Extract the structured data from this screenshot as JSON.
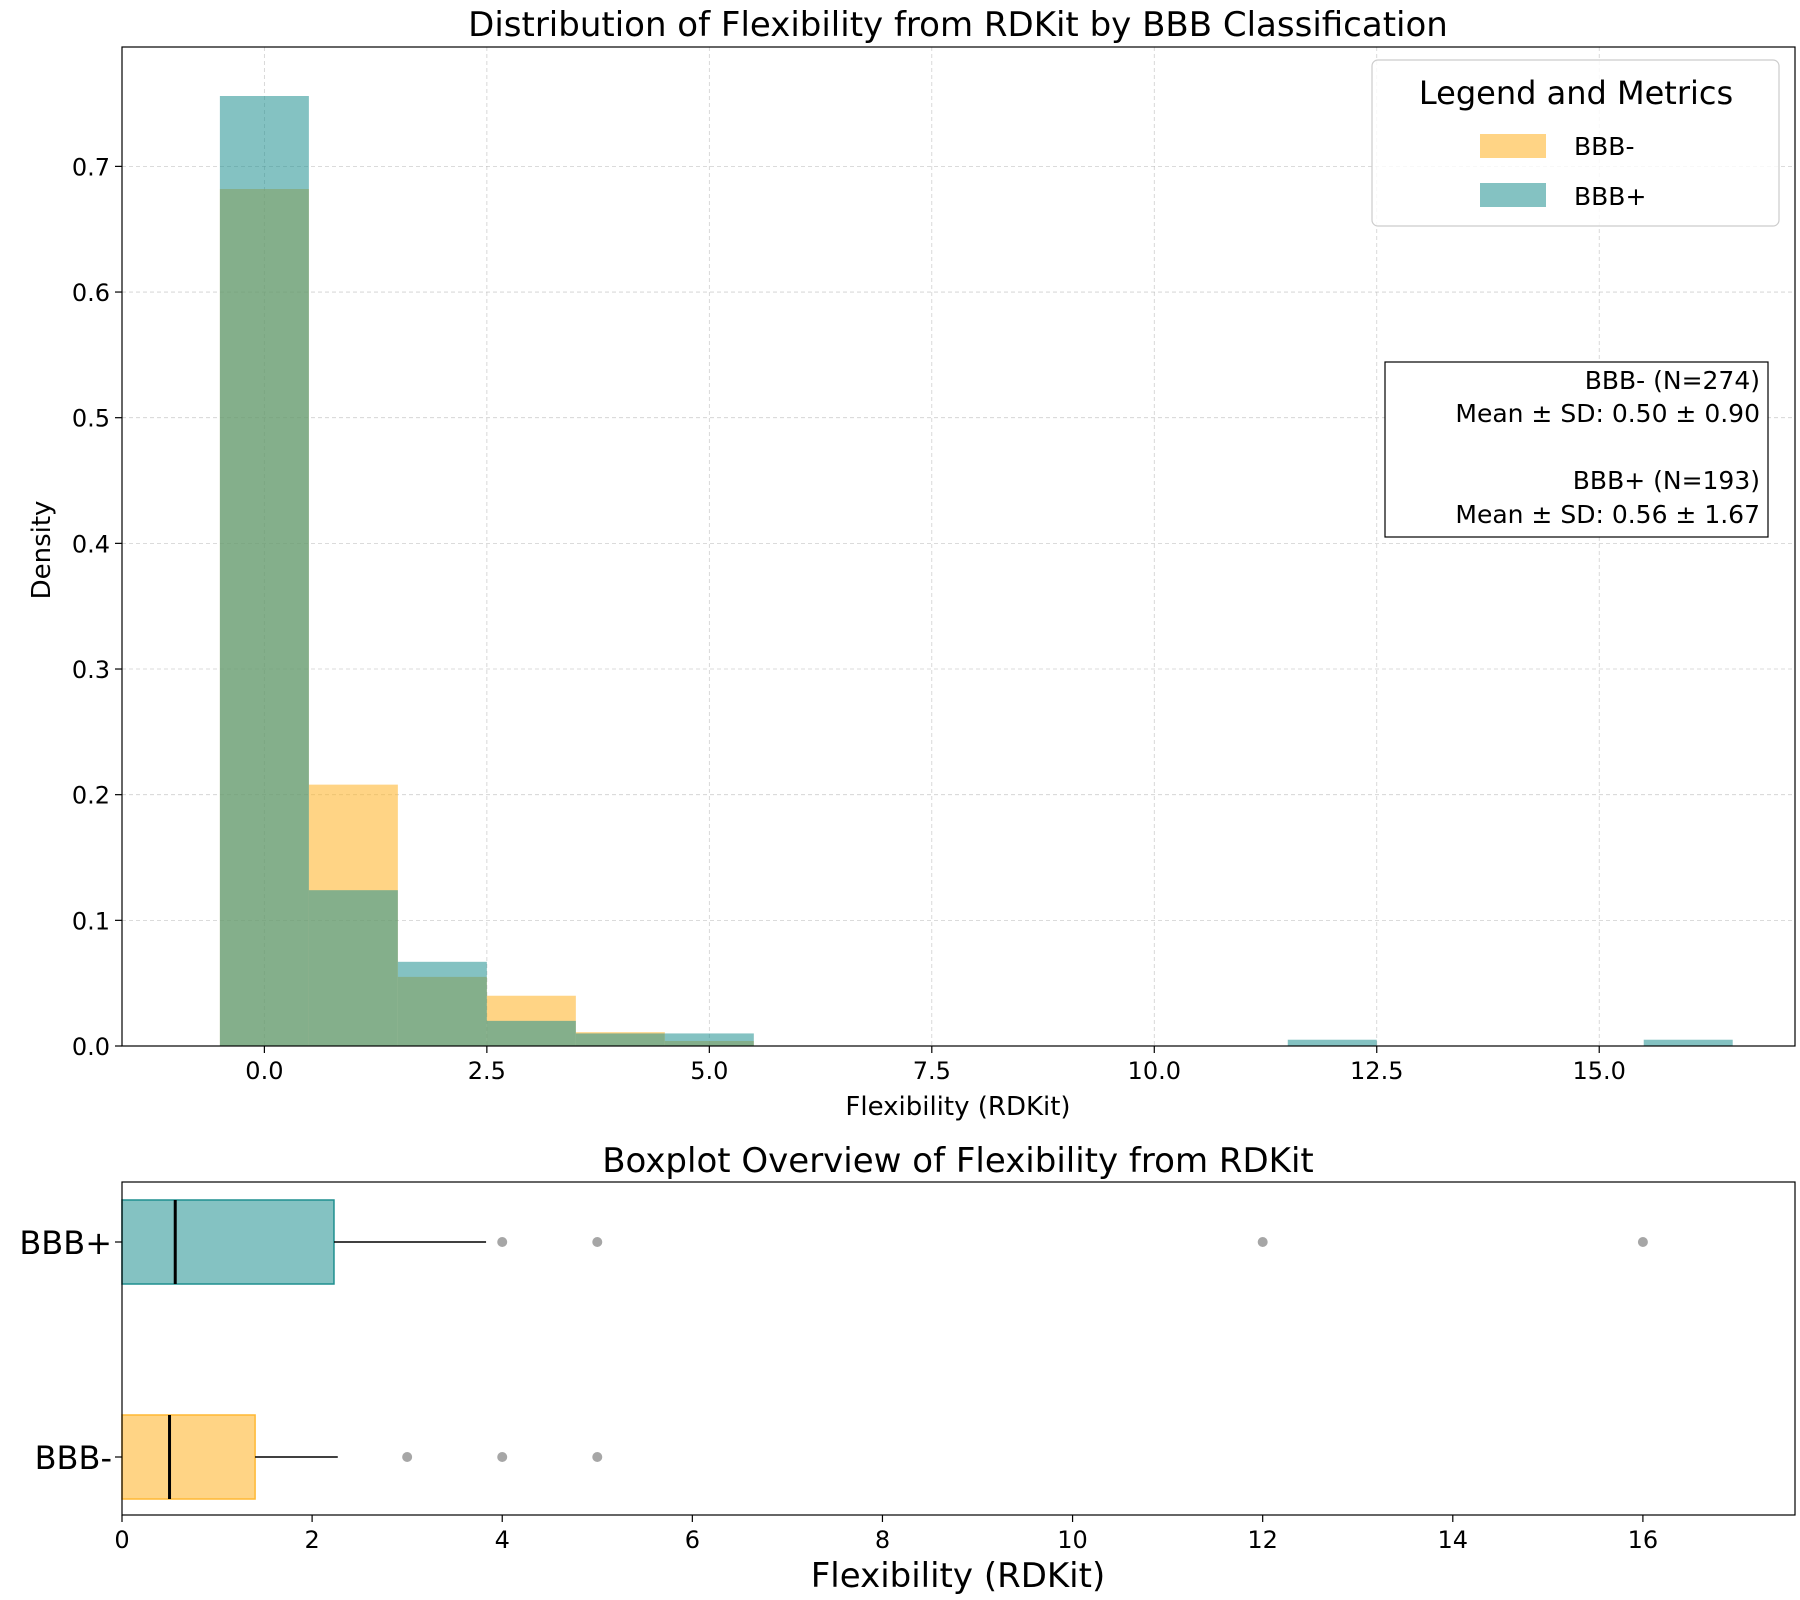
{
  "colors": {
    "bbb_neg": "#FFB833",
    "bbb_pos": "#1F8F8F",
    "outlier": "#808080"
  },
  "chart_data": [
    {
      "type": "histogram",
      "title": "Distribution of Flexibility from RDKit by BBB Classification",
      "xlabel": "Flexibility (RDKit)",
      "ylabel": "Density",
      "xlim": [
        -1.6,
        17.2
      ],
      "ylim": [
        0,
        0.795
      ],
      "xticks": [
        0.0,
        2.5,
        5.0,
        7.5,
        10.0,
        12.5,
        15.0
      ],
      "xtick_labels": [
        "0.0",
        "2.5",
        "5.0",
        "7.5",
        "10.0",
        "12.5",
        "15.0"
      ],
      "yticks": [
        0.0,
        0.1,
        0.2,
        0.3,
        0.4,
        0.5,
        0.6,
        0.7
      ],
      "ytick_labels": [
        "0.0",
        "0.1",
        "0.2",
        "0.3",
        "0.4",
        "0.5",
        "0.6",
        "0.7"
      ],
      "grid": true,
      "series": [
        {
          "name": "BBB-",
          "color_key": "bbb_neg",
          "bins": [
            {
              "x0": -0.5,
              "x1": 0.5,
              "value": 0.682
            },
            {
              "x0": 0.5,
              "x1": 1.5,
              "value": 0.208
            },
            {
              "x0": 1.5,
              "x1": 2.5,
              "value": 0.055
            },
            {
              "x0": 2.5,
              "x1": 3.5,
              "value": 0.04
            },
            {
              "x0": 3.5,
              "x1": 4.5,
              "value": 0.011
            },
            {
              "x0": 4.5,
              "x1": 5.5,
              "value": 0.004
            }
          ]
        },
        {
          "name": "BBB+",
          "color_key": "bbb_pos",
          "bins": [
            {
              "x0": -0.5,
              "x1": 0.5,
              "value": 0.756
            },
            {
              "x0": 0.5,
              "x1": 1.5,
              "value": 0.124
            },
            {
              "x0": 1.5,
              "x1": 2.5,
              "value": 0.067
            },
            {
              "x0": 2.5,
              "x1": 3.5,
              "value": 0.02
            },
            {
              "x0": 3.5,
              "x1": 4.5,
              "value": 0.01
            },
            {
              "x0": 4.5,
              "x1": 5.5,
              "value": 0.01
            },
            {
              "x0": 11.5,
              "x1": 12.5,
              "value": 0.005
            },
            {
              "x0": 15.5,
              "x1": 16.5,
              "value": 0.005
            }
          ]
        }
      ],
      "legend": {
        "title": "Legend and Metrics",
        "position": "top-right",
        "entries": [
          "BBB-",
          "BBB+"
        ]
      },
      "metrics_box": {
        "position": "right",
        "lines": [
          "BBB- (N=274)",
          "Mean ± SD: 0.50 ± 0.90",
          "",
          "BBB+ (N=193)",
          "Mean ± SD: 0.56 ± 1.67"
        ]
      }
    },
    {
      "type": "boxplot",
      "title": "Boxplot Overview of Flexibility from RDKit",
      "xlabel": "Flexibility (RDKit)",
      "xlim": [
        0,
        17.6
      ],
      "xticks": [
        0,
        2,
        4,
        6,
        8,
        10,
        12,
        14,
        16
      ],
      "xtick_labels": [
        "0",
        "2",
        "4",
        "6",
        "8",
        "10",
        "12",
        "14",
        "16"
      ],
      "categories": [
        "BBB+",
        "BBB-"
      ],
      "boxes": [
        {
          "name": "BBB+",
          "color_key": "bbb_pos",
          "q1": 0,
          "median": 0.56,
          "q3": 2.23,
          "whisker_low": 0,
          "whisker_high": 3.83,
          "outliers": [
            4,
            5,
            12,
            16
          ]
        },
        {
          "name": "BBB-",
          "color_key": "bbb_neg",
          "q1": 0,
          "median": 0.5,
          "q3": 1.4,
          "whisker_low": 0,
          "whisker_high": 2.27,
          "outliers": [
            3,
            4,
            5
          ]
        }
      ]
    }
  ]
}
